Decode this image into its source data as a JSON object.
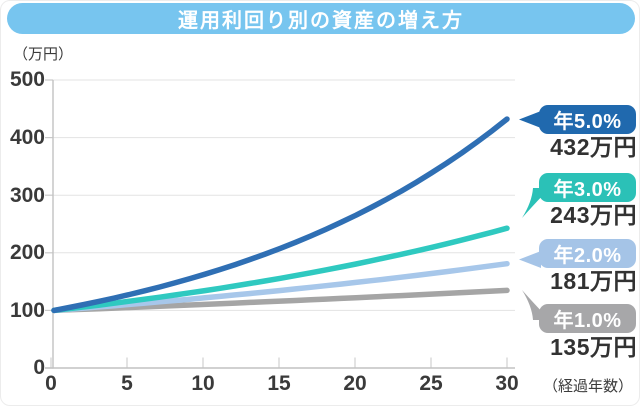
{
  "title": "運用利回り別の資産の増え方",
  "banner_color": "#77c5ef",
  "axes": {
    "y_unit": "（万円）",
    "x_unit": "（経過年数）",
    "y_ticks": [
      "500",
      "400",
      "300",
      "200",
      "100",
      "0"
    ],
    "x_ticks": [
      "0",
      "5",
      "10",
      "15",
      "20",
      "25",
      "30"
    ]
  },
  "chart_data": {
    "type": "line",
    "title": "運用利回り別の資産の増え方",
    "xlabel": "経過年数",
    "ylabel": "万円",
    "x": [
      0,
      5,
      10,
      15,
      20,
      25,
      30
    ],
    "xlim": [
      0,
      31
    ],
    "ylim": [
      0,
      500
    ],
    "y_tick_values": [
      0,
      100,
      200,
      300,
      400,
      500
    ],
    "grid": true,
    "legend_position": "right",
    "principal_man_yen": 100,
    "series": [
      {
        "name": "年5.0%",
        "rate": 0.05,
        "color": "#2f6fb4",
        "badge_color": "#2069ae",
        "final_value": 432,
        "final_label": "432万円",
        "values": [
          100,
          128,
          163,
          208,
          265,
          339,
          432
        ]
      },
      {
        "name": "年3.0%",
        "rate": 0.03,
        "color": "#2fc9c0",
        "badge_color": "#2bc1b7",
        "final_value": 243,
        "final_label": "243万円",
        "values": [
          100,
          116,
          134,
          156,
          181,
          209,
          243
        ]
      },
      {
        "name": "年2.0%",
        "rate": 0.02,
        "color": "#a7c7ea",
        "badge_color": "#a5c4e7",
        "final_value": 181,
        "final_label": "181万円",
        "values": [
          100,
          110,
          122,
          135,
          149,
          164,
          181
        ]
      },
      {
        "name": "年1.0%",
        "rate": 0.01,
        "color": "#a5a5a5",
        "badge_color": "#a7a7a9",
        "final_value": 135,
        "final_label": "135万円",
        "values": [
          100,
          105,
          110,
          116,
          122,
          128,
          135
        ]
      }
    ]
  }
}
